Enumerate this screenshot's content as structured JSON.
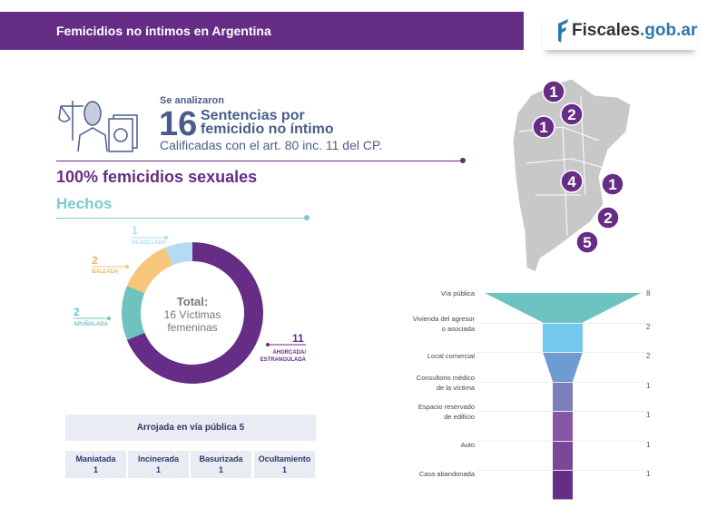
{
  "header": {
    "title": "Femicidios no íntimos en Argentina",
    "logo": {
      "main": "Fiscales",
      "domain": ".gob.ar"
    }
  },
  "intro": {
    "analyzed": "Se analizaron",
    "count": "16",
    "sentences": "Sentencias por",
    "kind": "femicidio no íntimo",
    "qualified": "Calificadas con el art. 80 inc. 11 del CP."
  },
  "headline": "100% femicidios sexuales",
  "section": "Hechos",
  "donut": {
    "total_title": "Total:",
    "total_line1": "16 Víctimas",
    "total_line2": "femeninas"
  },
  "chart_data": [
    {
      "type": "pie",
      "variant": "donut",
      "categories": [
        "AHORCADA/ ESTRANGULADA",
        "APUÑALADA",
        "BALEADA",
        "DEGOLLADA"
      ],
      "values": [
        11,
        2,
        2,
        1
      ],
      "colors": [
        "#662d86",
        "#6cc3bf",
        "#f8c67a",
        "#b3dcf3"
      ],
      "labels": [
        "11",
        "2",
        "2",
        "1"
      ]
    },
    {
      "type": "bar",
      "variant": "funnel",
      "categories": [
        "Vía pública",
        "Vivienda del agresor o asociada",
        "Local comercial",
        "Consultorio médico de la víctima",
        "Espacio reservado de edificio",
        "Auto",
        "Casa abandonada"
      ],
      "values": [
        8,
        2,
        2,
        1,
        1,
        1,
        1
      ],
      "colors": [
        "#6cc3bf",
        "#74c8ee",
        "#6f9bd3",
        "#7d7fbc",
        "#8657a5",
        "#7a4799",
        "#662d86"
      ]
    }
  ],
  "funnel_labels": [
    [
      "Vía pública"
    ],
    [
      "Vivienda del agresor",
      "o asociada"
    ],
    [
      "Local comercial"
    ],
    [
      "Consultorio médico",
      "de la víctima"
    ],
    [
      "Espacio reservado",
      "de edificio"
    ],
    [
      "Auto"
    ],
    [
      "Casa abandonada"
    ]
  ],
  "table": {
    "header": "Arrojada en vía pública 5",
    "cells": [
      {
        "label": "Maniatada",
        "value": "1"
      },
      {
        "label": "Incinerada",
        "value": "1"
      },
      {
        "label": "Basurizada",
        "value": "1"
      },
      {
        "label": "Ocultamiento",
        "value": "1"
      }
    ]
  },
  "map": {
    "markers": [
      "1",
      "2",
      "1",
      "4",
      "1",
      "2",
      "5"
    ],
    "marker_color": "#662d86"
  }
}
